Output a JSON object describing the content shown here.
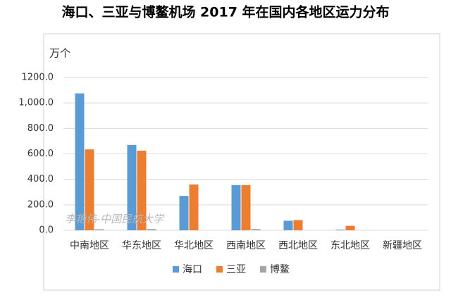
{
  "chart_data": {
    "type": "bar",
    "title": "海口、三亚与博鳌机场 2017 年在国内各地区运力分布",
    "y_unit": "万个",
    "watermark": "李艳伟-中国民航大学",
    "categories": [
      "中南地区",
      "华东地区",
      "华北地区",
      "西南地区",
      "西北地区",
      "东北地区",
      "新疆地区"
    ],
    "series": [
      {
        "name": "海口",
        "color": "#5b9bd5",
        "values": [
          1075,
          670,
          270,
          355,
          75,
          5,
          0
        ]
      },
      {
        "name": "三亚",
        "color": "#ed7d31",
        "values": [
          635,
          625,
          360,
          355,
          80,
          35,
          0
        ]
      },
      {
        "name": "博鳌",
        "color": "#a5a5a5",
        "values": [
          8,
          10,
          0,
          10,
          0,
          0,
          0
        ]
      }
    ],
    "ylim": [
      0,
      1200
    ],
    "yticks": [
      {
        "value": 0,
        "label": "0.0"
      },
      {
        "value": 200,
        "label": "200.0"
      },
      {
        "value": 400,
        "label": "400.0"
      },
      {
        "value": 600,
        "label": "600.0"
      },
      {
        "value": 800,
        "label": "800.0"
      },
      {
        "value": 1000,
        "label": "1,000.0"
      },
      {
        "value": 1200,
        "label": "1200.0"
      }
    ],
    "grid": true,
    "legend": "bottom"
  }
}
